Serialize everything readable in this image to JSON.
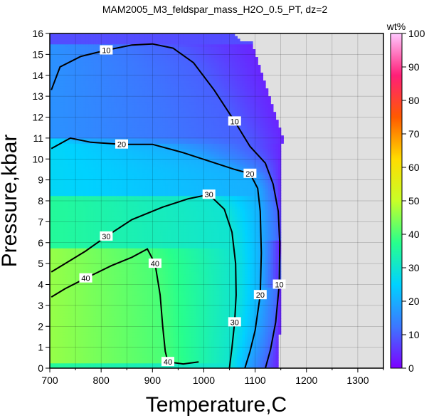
{
  "chart_data": {
    "type": "heatmap",
    "title": "MAM2005_M3_feldspar_mass_H2O_0.5_PT, dz=2",
    "xlabel": "Temperature,C",
    "ylabel": "Pressure,kbar",
    "xlim": [
      700,
      1350
    ],
    "ylim": [
      0,
      16
    ],
    "x_ticks": [
      "700",
      "800",
      "900",
      "1000",
      "1100",
      "1200",
      "1300"
    ],
    "y_ticks": [
      "0",
      "1",
      "2",
      "3",
      "4",
      "5",
      "6",
      "7",
      "8",
      "9",
      "10",
      "11",
      "12",
      "13",
      "14",
      "15",
      "16"
    ],
    "grid": true,
    "colorbar": {
      "label": "wt%",
      "range": [
        0,
        100
      ],
      "ticks": [
        "0",
        "10",
        "20",
        "30",
        "40",
        "50",
        "60",
        "70",
        "80",
        "90",
        "100"
      ],
      "colormap": [
        "#7d00ff",
        "#3c78ff",
        "#00d2ff",
        "#28ff8c",
        "#c8ff28",
        "#ffdc00",
        "#ff5a00",
        "#ff1e78",
        "#ffc8ff"
      ]
    },
    "no_data_color": "#e0e0e0",
    "contour_labels": [
      "10",
      "20",
      "30",
      "40"
    ],
    "contours": [
      {
        "level": 10,
        "points": [
          [
            703,
            13.3
          ],
          [
            720,
            14.4
          ],
          [
            760,
            14.9
          ],
          [
            810,
            15.2
          ],
          [
            860,
            15.45
          ],
          [
            900,
            15.5
          ],
          [
            940,
            15.3
          ],
          [
            980,
            14.6
          ],
          [
            1020,
            13.3
          ],
          [
            1060,
            11.8
          ],
          [
            1090,
            10.6
          ],
          [
            1120,
            9.8
          ],
          [
            1135,
            8.8
          ],
          [
            1145,
            7.5
          ],
          [
            1148,
            6
          ],
          [
            1147,
            4
          ],
          [
            1140,
            2.2
          ],
          [
            1130,
            0.9
          ],
          [
            1120,
            0
          ]
        ]
      },
      {
        "level": 20,
        "points": [
          [
            703,
            10.5
          ],
          [
            740,
            11.0
          ],
          [
            780,
            10.8
          ],
          [
            840,
            10.7
          ],
          [
            900,
            10.7
          ],
          [
            960,
            10.3
          ],
          [
            1010,
            9.9
          ],
          [
            1060,
            9.5
          ],
          [
            1090,
            9.3
          ],
          [
            1105,
            8.6
          ],
          [
            1110,
            7.5
          ],
          [
            1112,
            5.5
          ],
          [
            1110,
            3.5
          ],
          [
            1100,
            1.8
          ],
          [
            1090,
            0.8
          ],
          [
            1080,
            0
          ]
        ]
      },
      {
        "level": 30,
        "points": [
          [
            703,
            4.6
          ],
          [
            730,
            5.0
          ],
          [
            770,
            5.6
          ],
          [
            810,
            6.3
          ],
          [
            860,
            7.1
          ],
          [
            920,
            7.7
          ],
          [
            970,
            8.1
          ],
          [
            1010,
            8.3
          ],
          [
            1040,
            7.6
          ],
          [
            1055,
            6.5
          ],
          [
            1062,
            5
          ],
          [
            1063,
            3.5
          ],
          [
            1060,
            2.2
          ],
          [
            1055,
            1.0
          ],
          [
            1050,
            0
          ]
        ]
      },
      {
        "level": 40,
        "points": [
          [
            703,
            3.4
          ],
          [
            730,
            3.8
          ],
          [
            770,
            4.3
          ],
          [
            820,
            4.9
          ],
          [
            860,
            5.3
          ],
          [
            890,
            5.7
          ],
          [
            905,
            5.0
          ],
          [
            915,
            3.5
          ],
          [
            920,
            2.0
          ],
          [
            925,
            0.8
          ],
          [
            930,
            0.3
          ],
          [
            960,
            0.2
          ],
          [
            990,
            0.3
          ]
        ]
      }
    ]
  }
}
